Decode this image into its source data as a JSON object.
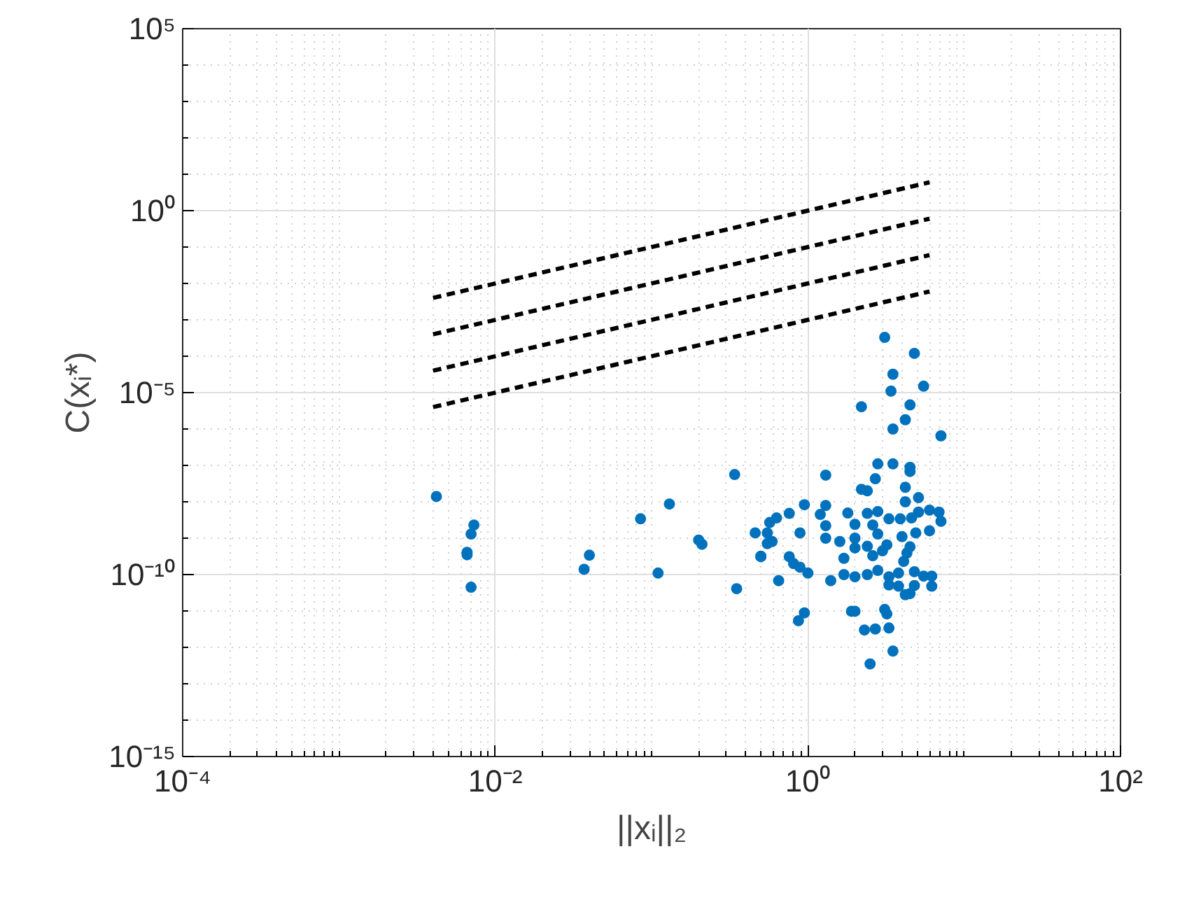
{
  "chart_data": {
    "type": "scatter",
    "xlabel": "||xᵢ||₂",
    "ylabel": "C(xᵢ*)",
    "log": "xy",
    "grid": true,
    "marker": "circle",
    "xlim": [
      0.0001,
      100
    ],
    "ylim": [
      1e-15,
      100000
    ],
    "xticks": [
      {
        "value": 0.0001,
        "label": "10⁻⁴"
      },
      {
        "value": 0.01,
        "label": "10⁻²"
      },
      {
        "value": 1,
        "label": "10⁰"
      },
      {
        "value": 100,
        "label": "10²"
      }
    ],
    "yticks": [
      {
        "value": 1e-15,
        "label": "10⁻¹⁵"
      },
      {
        "value": 1e-10,
        "label": "10⁻¹⁰"
      },
      {
        "value": 1e-05,
        "label": "10⁻⁵"
      },
      {
        "value": 1,
        "label": "10⁰"
      },
      {
        "value": 100000,
        "label": "10⁵"
      }
    ],
    "series": [
      {
        "color": "#0072bd",
        "x": [
          0.0042,
          0.0073,
          0.007,
          0.0066,
          0.0066,
          0.007,
          0.04,
          0.037,
          0.085,
          0.13,
          0.11,
          0.2,
          0.21,
          0.34,
          0.35,
          0.46,
          0.5,
          0.55,
          0.57,
          3.1,
          4.8,
          3.5,
          5.5,
          3.4,
          2.2,
          4.5,
          4.2,
          3.5,
          7.1,
          2.8,
          3.5,
          4.5,
          4.5,
          1.3,
          2.7,
          2.2,
          2.4,
          4.2,
          5.1,
          0.95,
          1.3,
          0.76,
          1.2,
          0.63,
          1.8,
          2.4,
          2.8,
          4.2,
          3.3,
          3.9,
          4.6,
          5.1,
          6.0,
          6.9,
          7.1,
          1.3,
          2.0,
          2.6,
          2.8,
          6.0,
          4.9,
          4.0,
          0.89,
          0.55,
          0.59,
          1.3,
          1.6,
          2.0,
          2.0,
          2.4,
          3.2,
          2.6,
          3.0,
          4.5,
          4.3,
          4.1,
          0.5,
          0.76,
          1.7,
          0.81,
          0.89,
          1.0,
          0.65,
          1.4,
          1.7,
          2.0,
          2.4,
          2.8,
          3.3,
          3.3,
          3.8,
          3.8,
          4.8,
          5.5,
          6.2,
          6.2,
          4.8,
          4.5,
          4.2,
          0.95,
          0.87,
          1.9,
          2.0,
          3.1,
          3.2,
          2.3,
          2.7,
          3.3,
          3.5,
          2.5
        ],
        "values": [
          1.4e-08,
          2.3e-09,
          1.3e-09,
          4.1e-10,
          3.5e-10,
          4.5e-11,
          3.4e-10,
          1.4e-10,
          3.4e-09,
          8.7e-09,
          1.1e-10,
          8.9e-10,
          6.8e-10,
          5.6e-08,
          4.1e-11,
          1.4e-09,
          3.1e-10,
          7.1e-10,
          2.7e-09,
          0.00033,
          0.00012,
          3.2e-05,
          1.5e-05,
          1.1e-05,
          4.1e-06,
          4.6e-06,
          1.8e-06,
          1e-06,
          6.5e-07,
          1.1e-07,
          1.1e-07,
          8.9e-08,
          6.8e-08,
          5.4e-08,
          4.3e-08,
          2.2e-08,
          2e-08,
          2.5e-08,
          1.3e-08,
          8.3e-09,
          7.9e-09,
          4.8e-09,
          4.5e-09,
          3.6e-09,
          4.9e-09,
          4.8e-09,
          5.4e-09,
          1e-08,
          3.4e-09,
          3.4e-09,
          3.6e-09,
          5.2e-09,
          5.9e-09,
          5.2e-09,
          2.9e-09,
          2.2e-09,
          2.4e-09,
          2.3e-09,
          1.3e-09,
          1.6e-09,
          1.4e-09,
          1.1e-09,
          1.4e-09,
          1.4e-09,
          8.1e-10,
          1e-09,
          8.1e-10,
          1e-09,
          5.4e-10,
          6e-10,
          6.6e-10,
          3.3e-10,
          4.5e-10,
          5.8e-10,
          3.9e-10,
          2.3e-10,
          3.2e-10,
          3.1e-10,
          2.8e-10,
          2e-10,
          1.6e-10,
          1.1e-10,
          6.8e-11,
          6.8e-11,
          1e-10,
          8.7e-11,
          1e-10,
          1.3e-10,
          8.7e-11,
          5.2e-11,
          4.8e-11,
          1.1e-10,
          1.2e-10,
          9.1e-11,
          9.1e-11,
          4.8e-11,
          5e-11,
          3e-11,
          2.8e-11,
          8.9e-12,
          5.4e-12,
          9.8e-12,
          9.8e-12,
          1.1e-11,
          8.3e-12,
          3e-12,
          3.2e-12,
          3.4e-12,
          7.9e-13,
          3.5e-13
        ]
      },
      {
        "type": "line",
        "color": "#000000",
        "line_style": "dashed",
        "marker": "none",
        "x": [
          0.004,
          6
        ],
        "values": [
          0.004,
          6
        ]
      },
      {
        "type": "line",
        "color": "#000000",
        "line_style": "dashed",
        "marker": "none",
        "x": [
          0.004,
          6
        ],
        "values": [
          0.0004,
          0.6
        ]
      },
      {
        "type": "line",
        "color": "#000000",
        "line_style": "dashed",
        "marker": "none",
        "x": [
          0.004,
          6
        ],
        "values": [
          4e-05,
          0.06
        ]
      },
      {
        "type": "line",
        "color": "#000000",
        "line_style": "dashed",
        "marker": "none",
        "x": [
          0.004,
          6
        ],
        "values": [
          4e-06,
          0.006
        ]
      }
    ]
  }
}
